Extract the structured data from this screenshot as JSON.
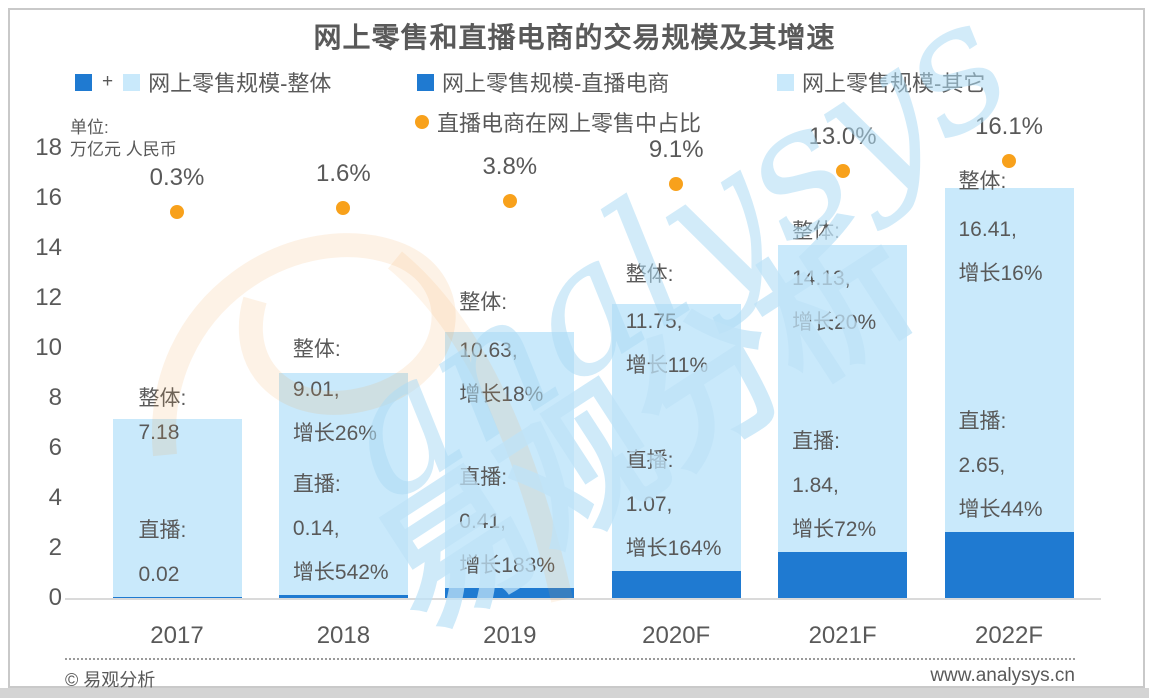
{
  "chart": {
    "title": "网上零售和直播电商的交易规模及其增速",
    "unit": {
      "line1": "单位:",
      "line2": "万亿元 人民币"
    },
    "legend_plus": "+",
    "legend": [
      {
        "id": "overall",
        "label": "网上零售规模-整体"
      },
      {
        "id": "live",
        "label": "网上零售规模-直播电商"
      },
      {
        "id": "other",
        "label": "网上零售规模-其它"
      },
      {
        "id": "pct",
        "label": "直播电商在网上零售中占比"
      }
    ]
  },
  "colors": {
    "dark_blue": "#1F7AD1",
    "light_blue": "#C9E9FB",
    "orange": "#F8A11B",
    "text_gray": "#595959",
    "axis_gray": "#DADADA"
  },
  "watermark": {
    "script": "analysys",
    "cn": "易观分析"
  },
  "footer": {
    "left": "© 易观分析",
    "right": "www.analysys.cn"
  },
  "chart_data": {
    "type": "bar",
    "variant": "stacked-bars-with-point-series",
    "title": "网上零售和直播电商的交易规模及其增速",
    "xlabel": "",
    "ylabel": "万亿元 人民币",
    "ylim": [
      0,
      18
    ],
    "yticks": [
      0,
      2,
      4,
      6,
      8,
      10,
      12,
      14,
      16,
      18
    ],
    "grid": false,
    "legend_position": "top",
    "categories": [
      "2017",
      "2018",
      "2019",
      "2020F",
      "2021F",
      "2022F"
    ],
    "series": [
      {
        "name": "网上零售规模-整体",
        "role": "total",
        "values": [
          7.18,
          9.01,
          10.63,
          11.75,
          14.13,
          16.41
        ]
      },
      {
        "name": "网上零售规模-直播电商",
        "role": "stack-bottom",
        "values": [
          0.02,
          0.14,
          0.41,
          1.07,
          1.84,
          2.65
        ]
      },
      {
        "name": "网上零售规模-其它",
        "role": "stack-top",
        "values": [
          7.16,
          8.87,
          10.22,
          10.68,
          12.29,
          13.76
        ]
      },
      {
        "name": "直播电商在网上零售中占比",
        "role": "point",
        "unit": "%",
        "values": [
          0.3,
          1.6,
          3.8,
          9.1,
          13.0,
          16.1
        ]
      }
    ],
    "point_labels": [
      "0.3%",
      "1.6%",
      "3.8%",
      "9.1%",
      "13.0%",
      "16.1%"
    ],
    "growth_overall": [
      null,
      "26%",
      "18%",
      "11%",
      "20%",
      "16%"
    ],
    "growth_live": [
      null,
      "542%",
      "183%",
      "164%",
      "72%",
      "44%"
    ],
    "bar_annotations": [
      {
        "total_label": "整体:",
        "total_lines": [
          "7.18"
        ],
        "live_label": "直播:",
        "live_lines": [
          "0.02"
        ]
      },
      {
        "total_label": "整体:",
        "total_lines": [
          "9.01,",
          "增长26%"
        ],
        "live_label": "直播:",
        "live_lines": [
          "0.14,",
          "增长542%"
        ]
      },
      {
        "total_label": "整体:",
        "total_lines": [
          "10.63,",
          "增长18%"
        ],
        "live_label": "直播:",
        "live_lines": [
          "0.41,",
          "增长183%"
        ]
      },
      {
        "total_label": "整体:",
        "total_lines": [
          "11.75,",
          "增长11%"
        ],
        "live_label": "直播:",
        "live_lines": [
          "1.07,",
          "增长164%"
        ]
      },
      {
        "total_label": "整体:",
        "total_lines": [
          "14.13,",
          "增长20%"
        ],
        "live_label": "直播:",
        "live_lines": [
          "1.84,",
          "增长72%"
        ]
      },
      {
        "total_label": "整体:",
        "total_lines": [
          "16.41,",
          "增长16%"
        ],
        "live_label": "直播:",
        "live_lines": [
          "2.65,",
          "增长44%"
        ]
      }
    ]
  }
}
